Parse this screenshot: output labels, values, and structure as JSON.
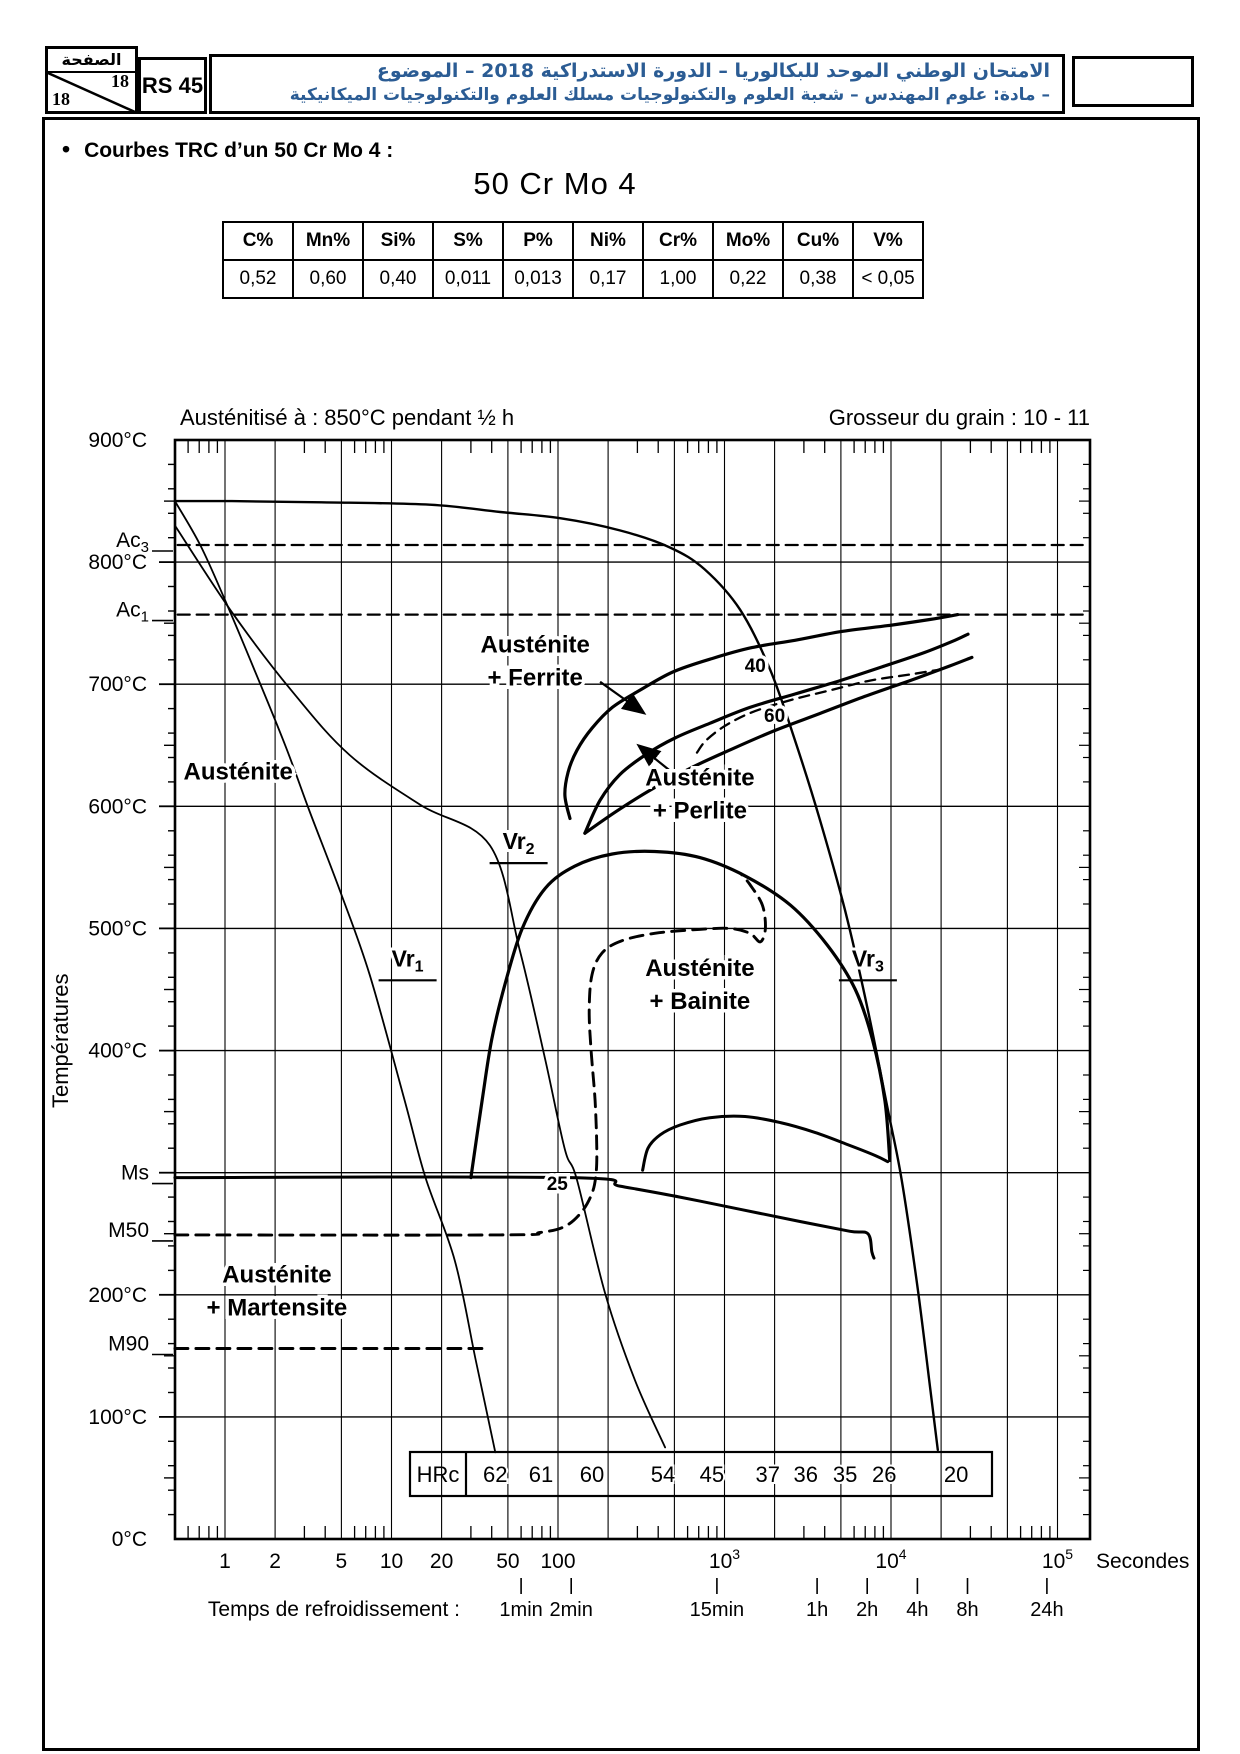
{
  "header": {
    "accent_color": "#2b5c94",
    "page_box": {
      "title": "الصفحة",
      "num_top": "18",
      "num_bottom": "18"
    },
    "code": "RS 45",
    "title_line1": "الامتحان الوطني الموحد للبكالوريا – الدورة الاستدراكية 2018 – الموضوع",
    "title_line2": "– مادة: علوم المهندس – شعبة العلوم والتكنولوجيات مسلك العلوم والتكنولوجيات الميكانيكية"
  },
  "section": {
    "bullet_title": "Courbes TRC d’un 50 Cr Mo 4 :"
  },
  "chart_data": {
    "type": "line",
    "title": "50 Cr Mo 4",
    "composition": {
      "headers": [
        "C%",
        "Mn%",
        "Si%",
        "S%",
        "P%",
        "Ni%",
        "Cr%",
        "Mo%",
        "Cu%",
        "V%"
      ],
      "values": [
        "0,52",
        "0,60",
        "0,40",
        "0,011",
        "0,013",
        "0,17",
        "1,00",
        "0,22",
        "0,38",
        "< 0,05"
      ]
    },
    "subtitle_left": "Austénitisé à : 850°C pendant ½ h",
    "subtitle_right": "Grosseur du grain : 10 - 11",
    "ylabel": "Températures",
    "xlabel": "Secondes",
    "x_scale": "log",
    "xlim": [
      0.5,
      150000
    ],
    "ylim": [
      0,
      900
    ],
    "grid_x": [
      1,
      2,
      5,
      10,
      20,
      50,
      100,
      200,
      500,
      1000,
      2000,
      5000,
      10000,
      20000,
      50000,
      100000
    ],
    "grid_y": [
      100,
      200,
      300,
      400,
      500,
      600,
      700,
      800
    ],
    "x_ticks": [
      [
        1,
        "1"
      ],
      [
        2,
        "2"
      ],
      [
        5,
        "5"
      ],
      [
        10,
        "10"
      ],
      [
        20,
        "20"
      ],
      [
        50,
        "50"
      ],
      [
        100,
        "100"
      ],
      [
        1000,
        "10|3"
      ],
      [
        10000,
        "10|4"
      ],
      [
        100000,
        "10|5"
      ]
    ],
    "y_ticks": [
      [
        900,
        "900°C"
      ],
      [
        800,
        "800°C"
      ],
      [
        700,
        "700°C"
      ],
      [
        600,
        "600°C"
      ],
      [
        500,
        "500°C"
      ],
      [
        400,
        "400°C"
      ],
      [
        200,
        "200°C"
      ],
      [
        100,
        "100°C"
      ],
      [
        0,
        "0°C"
      ]
    ],
    "markers": [
      {
        "base": "Ac",
        "sub": "3",
        "T": 814
      },
      {
        "base": "Ac",
        "sub": "1",
        "T": 757
      },
      {
        "base": "Ms",
        "sub": "",
        "T": 296
      },
      {
        "base": "M50",
        "sub": "",
        "T": 249
      },
      {
        "base": "M90",
        "sub": "",
        "T": 156
      }
    ],
    "time_axis_label": "Temps de refroidissement :",
    "time_ticks": [
      [
        60,
        "1min"
      ],
      [
        120,
        "2min"
      ],
      [
        900,
        "15min"
      ],
      [
        3600,
        "1h"
      ],
      [
        7200,
        "2h"
      ],
      [
        14400,
        "4h"
      ],
      [
        28800,
        "8h"
      ],
      [
        86400,
        "24h"
      ]
    ],
    "hrc": {
      "label": "HRc",
      "entries": [
        [
          42,
          "62"
        ],
        [
          79,
          "61"
        ],
        [
          160,
          "60"
        ],
        [
          427,
          "54"
        ],
        [
          840,
          "45"
        ],
        [
          1820,
          "37"
        ],
        [
          3080,
          "36"
        ],
        [
          5300,
          "35"
        ],
        [
          9100,
          "26"
        ],
        [
          24600,
          "20"
        ]
      ]
    },
    "curves": [
      {
        "name": "ac3-line",
        "style": "dashed",
        "width": 2.3,
        "dash": "12 7",
        "points": [
          [
            0.52,
            814
          ],
          [
            145000,
            814
          ]
        ]
      },
      {
        "name": "ac1-line",
        "style": "dashed",
        "width": 2.3,
        "dash": "12 7",
        "points": [
          [
            0.52,
            757
          ],
          [
            145000,
            757
          ]
        ]
      },
      {
        "name": "austenitization-vr3",
        "style": "solid",
        "width": 2.4,
        "points": [
          [
            0.5,
            850
          ],
          [
            1.1,
            850
          ],
          [
            3.8,
            849
          ],
          [
            17,
            847
          ],
          [
            45,
            841
          ],
          [
            103,
            836
          ],
          [
            235,
            826
          ],
          [
            470,
            812
          ],
          [
            760,
            794
          ],
          [
            1240,
            761
          ],
          [
            1880,
            712
          ],
          [
            2650,
            654
          ],
          [
            3740,
            589
          ],
          [
            5290,
            515
          ],
          [
            7270,
            433
          ],
          [
            9590,
            351
          ],
          [
            11600,
            294
          ],
          [
            14500,
            204
          ],
          [
            17100,
            126
          ],
          [
            19100,
            73
          ]
        ]
      },
      {
        "name": "vr1",
        "style": "solid",
        "width": 1.8,
        "points": [
          [
            0.5,
            850
          ],
          [
            0.71,
            814
          ],
          [
            1.0,
            769
          ],
          [
            1.5,
            712
          ],
          [
            2.3,
            650
          ],
          [
            3.2,
            597
          ],
          [
            4.9,
            531
          ],
          [
            7.4,
            462
          ],
          [
            12,
            359
          ],
          [
            16,
            296
          ],
          [
            24,
            228
          ],
          [
            32,
            147
          ],
          [
            42,
            71
          ]
        ]
      },
      {
        "name": "vr2",
        "style": "solid",
        "width": 1.8,
        "points": [
          [
            0.5,
            830
          ],
          [
            1.1,
            759
          ],
          [
            2.5,
            695
          ],
          [
            5.6,
            642
          ],
          [
            15,
            601
          ],
          [
            39,
            568
          ],
          [
            59,
            482
          ],
          [
            84,
            392
          ],
          [
            110,
            319
          ],
          [
            130,
            294
          ],
          [
            192,
            201
          ],
          [
            290,
            130
          ],
          [
            440,
            75
          ]
        ]
      },
      {
        "name": "ferrite-start",
        "style": "solid",
        "width": 3.2,
        "points": [
          [
            118,
            590
          ],
          [
            110,
            609
          ],
          [
            115,
            628
          ],
          [
            130,
            646
          ],
          [
            160,
            664
          ],
          [
            212,
            681
          ],
          [
            310,
            695
          ],
          [
            489,
            710
          ],
          [
            840,
            721
          ],
          [
            1460,
            730
          ],
          [
            2650,
            736
          ],
          [
            4950,
            743
          ],
          [
            9590,
            748
          ],
          [
            17100,
            753
          ],
          [
            25200,
            757
          ]
        ]
      },
      {
        "name": "pearlite-start",
        "style": "solid",
        "width": 3.2,
        "points": [
          [
            145,
            578
          ],
          [
            179,
            605
          ],
          [
            235,
            626
          ],
          [
            334,
            642
          ],
          [
            504,
            656
          ],
          [
            816,
            668
          ],
          [
            1420,
            681
          ],
          [
            2650,
            692
          ],
          [
            4950,
            703
          ],
          [
            9190,
            715
          ],
          [
            15900,
            726
          ],
          [
            24200,
            736
          ],
          [
            29000,
            741
          ]
        ]
      },
      {
        "name": "pearlite-end",
        "style": "solid",
        "width": 3.2,
        "points": [
          [
            145,
            578
          ],
          [
            219,
            595
          ],
          [
            355,
            613
          ],
          [
            619,
            631
          ],
          [
            1070,
            646
          ],
          [
            2000,
            662
          ],
          [
            3740,
            676
          ],
          [
            6960,
            690
          ],
          [
            13000,
            703
          ],
          [
            22600,
            715
          ],
          [
            30600,
            722
          ]
        ]
      },
      {
        "name": "pearlite-mid",
        "style": "dashed",
        "width": 2.3,
        "dash": "10 7",
        "points": [
          [
            684,
            644
          ],
          [
            775,
            654
          ],
          [
            1010,
            666
          ],
          [
            1460,
            677
          ],
          [
            2490,
            687
          ],
          [
            4310,
            695
          ],
          [
            7470,
            703
          ],
          [
            13000,
            708
          ],
          [
            19700,
            712
          ]
        ]
      },
      {
        "name": "bainite-start",
        "style": "solid",
        "width": 3.2,
        "points": [
          [
            30,
            296
          ],
          [
            35,
            359
          ],
          [
            40,
            409
          ],
          [
            48,
            454
          ],
          [
            61,
            500
          ],
          [
            84,
            533
          ],
          [
            126,
            551
          ],
          [
            212,
            561
          ],
          [
            381,
            563
          ],
          [
            712,
            558
          ],
          [
            1330,
            543
          ],
          [
            2490,
            519
          ],
          [
            4160,
            486
          ],
          [
            6100,
            450
          ],
          [
            7740,
            409
          ],
          [
            9190,
            359
          ],
          [
            9830,
            310
          ]
        ]
      },
      {
        "name": "bainite-inner",
        "style": "solid",
        "width": 3,
        "points": [
          [
            322,
            302
          ],
          [
            347,
            320
          ],
          [
            411,
            331
          ],
          [
            541,
            339
          ],
          [
            816,
            345
          ],
          [
            1330,
            346
          ],
          [
            2170,
            341
          ],
          [
            3490,
            333
          ],
          [
            5490,
            323
          ],
          [
            8060,
            314
          ],
          [
            9560,
            309
          ]
        ]
      },
      {
        "name": "ms-line",
        "style": "solid",
        "width": 3,
        "points": [
          [
            0.5,
            296
          ],
          [
            118,
            296
          ],
          [
            235,
            289
          ],
          [
            540,
            280
          ],
          [
            1240,
            270
          ],
          [
            2840,
            260
          ],
          [
            5670,
            252
          ],
          [
            7270,
            250
          ],
          [
            7680,
            235
          ],
          [
            7900,
            230
          ]
        ]
      },
      {
        "name": "m50-line",
        "style": "dashed",
        "width": 2.9,
        "dash": "13 8",
        "points": [
          [
            0.5,
            249
          ],
          [
            45,
            249
          ],
          [
            78,
            251
          ],
          [
            110,
            256
          ],
          [
            139,
            268
          ],
          [
            160,
            283
          ],
          [
            169,
            298
          ],
          [
            171,
            319
          ],
          [
            167,
            359
          ],
          [
            158,
            400
          ],
          [
            154,
            433
          ],
          [
            160,
            462
          ],
          [
            184,
            480
          ],
          [
            242,
            490
          ],
          [
            381,
            496
          ],
          [
            664,
            499
          ],
          [
            1070,
            500
          ],
          [
            1420,
            496
          ],
          [
            1640,
            489
          ],
          [
            1760,
            500
          ],
          [
            1690,
            519
          ],
          [
            1420,
            536
          ],
          [
            1250,
            545
          ]
        ]
      },
      {
        "name": "m90-line",
        "style": "dashed",
        "width": 2.9,
        "dash": "13 8",
        "points": [
          [
            0.5,
            156
          ],
          [
            39,
            156
          ]
        ]
      }
    ],
    "labels": [
      {
        "name": "austenite",
        "lines": [
          "Austénite"
        ],
        "t": 1.2,
        "T": 622,
        "fs": 24
      },
      {
        "name": "austenite-ferrite",
        "lines": [
          "Austénite",
          "+ Ferrite"
        ],
        "t": 73,
        "T": 726,
        "fs": 24
      },
      {
        "name": "austenite-perlite",
        "lines": [
          "Austénite",
          "+ Perlite"
        ],
        "t": 712,
        "T": 617,
        "fs": 24
      },
      {
        "name": "austenite-bainite",
        "lines": [
          "Austénite",
          "+ Bainite"
        ],
        "t": 712,
        "T": 461,
        "fs": 24
      },
      {
        "name": "austenite-martensite",
        "lines": [
          "Austénite",
          "+ Martensite"
        ],
        "t": 2.05,
        "T": 210,
        "fs": 24
      },
      {
        "name": "pct-40",
        "lines": [
          "40"
        ],
        "t": 1530,
        "T": 710,
        "fs": 19
      },
      {
        "name": "pct-60",
        "lines": [
          "60"
        ],
        "t": 2000,
        "T": 669,
        "fs": 19
      },
      {
        "name": "pct-25",
        "lines": [
          "25"
        ],
        "t": 99,
        "T": 286,
        "fs": 19
      }
    ],
    "vr_labels": [
      {
        "base": "Vr",
        "sub": "1",
        "t": 12.5,
        "T": 469
      },
      {
        "base": "Vr",
        "sub": "2",
        "t": 58,
        "T": 565
      },
      {
        "base": "Vr",
        "sub": "3",
        "t": 7270,
        "T": 469
      }
    ],
    "arrows": [
      {
        "from": [
          179,
          702
        ],
        "to": [
          323,
          677
        ]
      },
      {
        "from": [
          525,
          624
        ],
        "to": [
          310,
          649
        ]
      }
    ]
  }
}
